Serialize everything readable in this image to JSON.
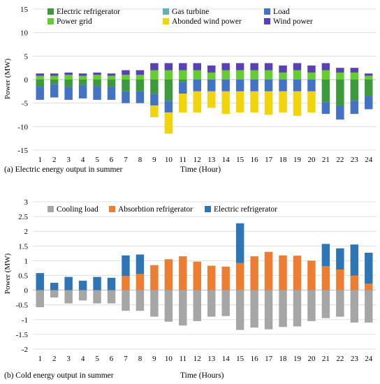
{
  "chart_data": [
    {
      "type": "bar",
      "caption": "(a) Electric energy output in summer",
      "xlabel": "Time (Hour)",
      "ylabel": "Power (MW)",
      "ylim": [
        -15,
        15
      ],
      "yticks": [
        -15,
        -10,
        -5,
        0,
        5,
        10,
        15
      ],
      "grid": true,
      "legend_position": "top-left",
      "categories": [
        "1",
        "2",
        "3",
        "4",
        "5",
        "6",
        "7",
        "8",
        "9",
        "10",
        "11",
        "12",
        "13",
        "14",
        "15",
        "16",
        "17",
        "18",
        "19",
        "20",
        "21",
        "22",
        "23",
        "24"
      ],
      "series": [
        {
          "name": "Electric refrigerator",
          "color": "#3c9a3c",
          "values": [
            -1.5,
            -1.0,
            -1.5,
            -1.2,
            -1.5,
            -1.5,
            -2.5,
            -2.5,
            -3.0,
            -4.5,
            -0.5,
            0,
            0,
            0,
            0,
            0,
            0,
            0,
            0,
            0,
            -4.8,
            -5.5,
            -4.5,
            -3.5
          ]
        },
        {
          "name": "Gas turbine",
          "color": "#62b2b2",
          "values": [
            0,
            0,
            0,
            0,
            0,
            0,
            0,
            0,
            0,
            0,
            0,
            0,
            0,
            0,
            0,
            0,
            0,
            0,
            0,
            0,
            0,
            0,
            0,
            0
          ]
        },
        {
          "name": "Load",
          "color": "#4472c4",
          "values": [
            -2.8,
            -2.8,
            -2.8,
            -2.8,
            -2.8,
            -2.8,
            -2.5,
            -2.5,
            -2.5,
            -2.5,
            -2.5,
            -2.5,
            -2.5,
            -2.5,
            -2.5,
            -2.5,
            -2.5,
            -2.5,
            -2.5,
            -2.5,
            -2.5,
            -3.0,
            -2.8,
            -2.8
          ]
        },
        {
          "name": "Power grid",
          "color": "#66cc33",
          "values": [
            0.8,
            0.8,
            1.0,
            0.8,
            1.0,
            0.8,
            1.0,
            1.0,
            2.0,
            2.0,
            2.0,
            2.0,
            1.5,
            2.0,
            2.0,
            2.0,
            2.0,
            1.5,
            2.0,
            1.5,
            2.0,
            1.5,
            1.5,
            0.8
          ]
        },
        {
          "name": "Abonded wind power",
          "color": "#f2d40c",
          "values": [
            0,
            0,
            0,
            0,
            0,
            0,
            0,
            0,
            -2.5,
            -4.5,
            -4.0,
            -4.5,
            -3.5,
            -4.8,
            -4.5,
            -4.5,
            -5.0,
            -4.5,
            -5.2,
            -4.5,
            0,
            0,
            0,
            0
          ]
        },
        {
          "name": "Wind power",
          "color": "#5a3fb5",
          "values": [
            0.5,
            0.5,
            0.5,
            0.5,
            0.5,
            0.5,
            1.0,
            1.0,
            1.5,
            1.5,
            1.5,
            1.5,
            1.5,
            1.5,
            1.5,
            1.5,
            1.5,
            1.5,
            1.5,
            1.5,
            1.5,
            1.0,
            1.0,
            0.5
          ]
        }
      ]
    },
    {
      "type": "bar",
      "caption": "(b) Cold energy output in summer",
      "xlabel": "Time (Hours)",
      "ylabel": "Power (MW)",
      "ylim": [
        -2,
        3
      ],
      "yticks": [
        -2,
        -1.5,
        -1,
        -0.5,
        0,
        0.5,
        1,
        1.5,
        2,
        2.5,
        3
      ],
      "grid": true,
      "legend_position": "top",
      "categories": [
        "1",
        "2",
        "3",
        "4",
        "5",
        "6",
        "7",
        "8",
        "9",
        "10",
        "11",
        "12",
        "13",
        "14",
        "15",
        "16",
        "17",
        "18",
        "19",
        "20",
        "21",
        "22",
        "23",
        "24"
      ],
      "series": [
        {
          "name": "Cooling load",
          "color": "#a6a6a6",
          "values": [
            -0.58,
            -0.25,
            -0.45,
            -0.35,
            -0.45,
            -0.45,
            -0.7,
            -0.7,
            -0.9,
            -1.07,
            -1.2,
            -1.05,
            -0.9,
            -0.88,
            -1.35,
            -1.27,
            -1.33,
            -1.25,
            -1.23,
            -1.05,
            -0.95,
            -0.9,
            -1.1,
            -1.1
          ]
        },
        {
          "name": "Absorbtion refrigerator",
          "color": "#ed7d31",
          "values": [
            0,
            0,
            0,
            0,
            0,
            0,
            0.48,
            0.55,
            0.85,
            1.05,
            1.15,
            0.97,
            0.83,
            0.8,
            0.92,
            1.15,
            1.3,
            1.18,
            1.17,
            1.0,
            0.82,
            0.7,
            0.5,
            0.22
          ]
        },
        {
          "name": "Electric refrigerator",
          "color": "#2e75b6",
          "values": [
            0.58,
            0.25,
            0.45,
            0.32,
            0.45,
            0.42,
            0.7,
            0.66,
            0,
            0,
            0,
            0,
            0,
            0,
            1.35,
            0,
            0,
            0,
            0,
            0,
            0.75,
            0.72,
            1.05,
            1.05
          ]
        }
      ]
    }
  ]
}
